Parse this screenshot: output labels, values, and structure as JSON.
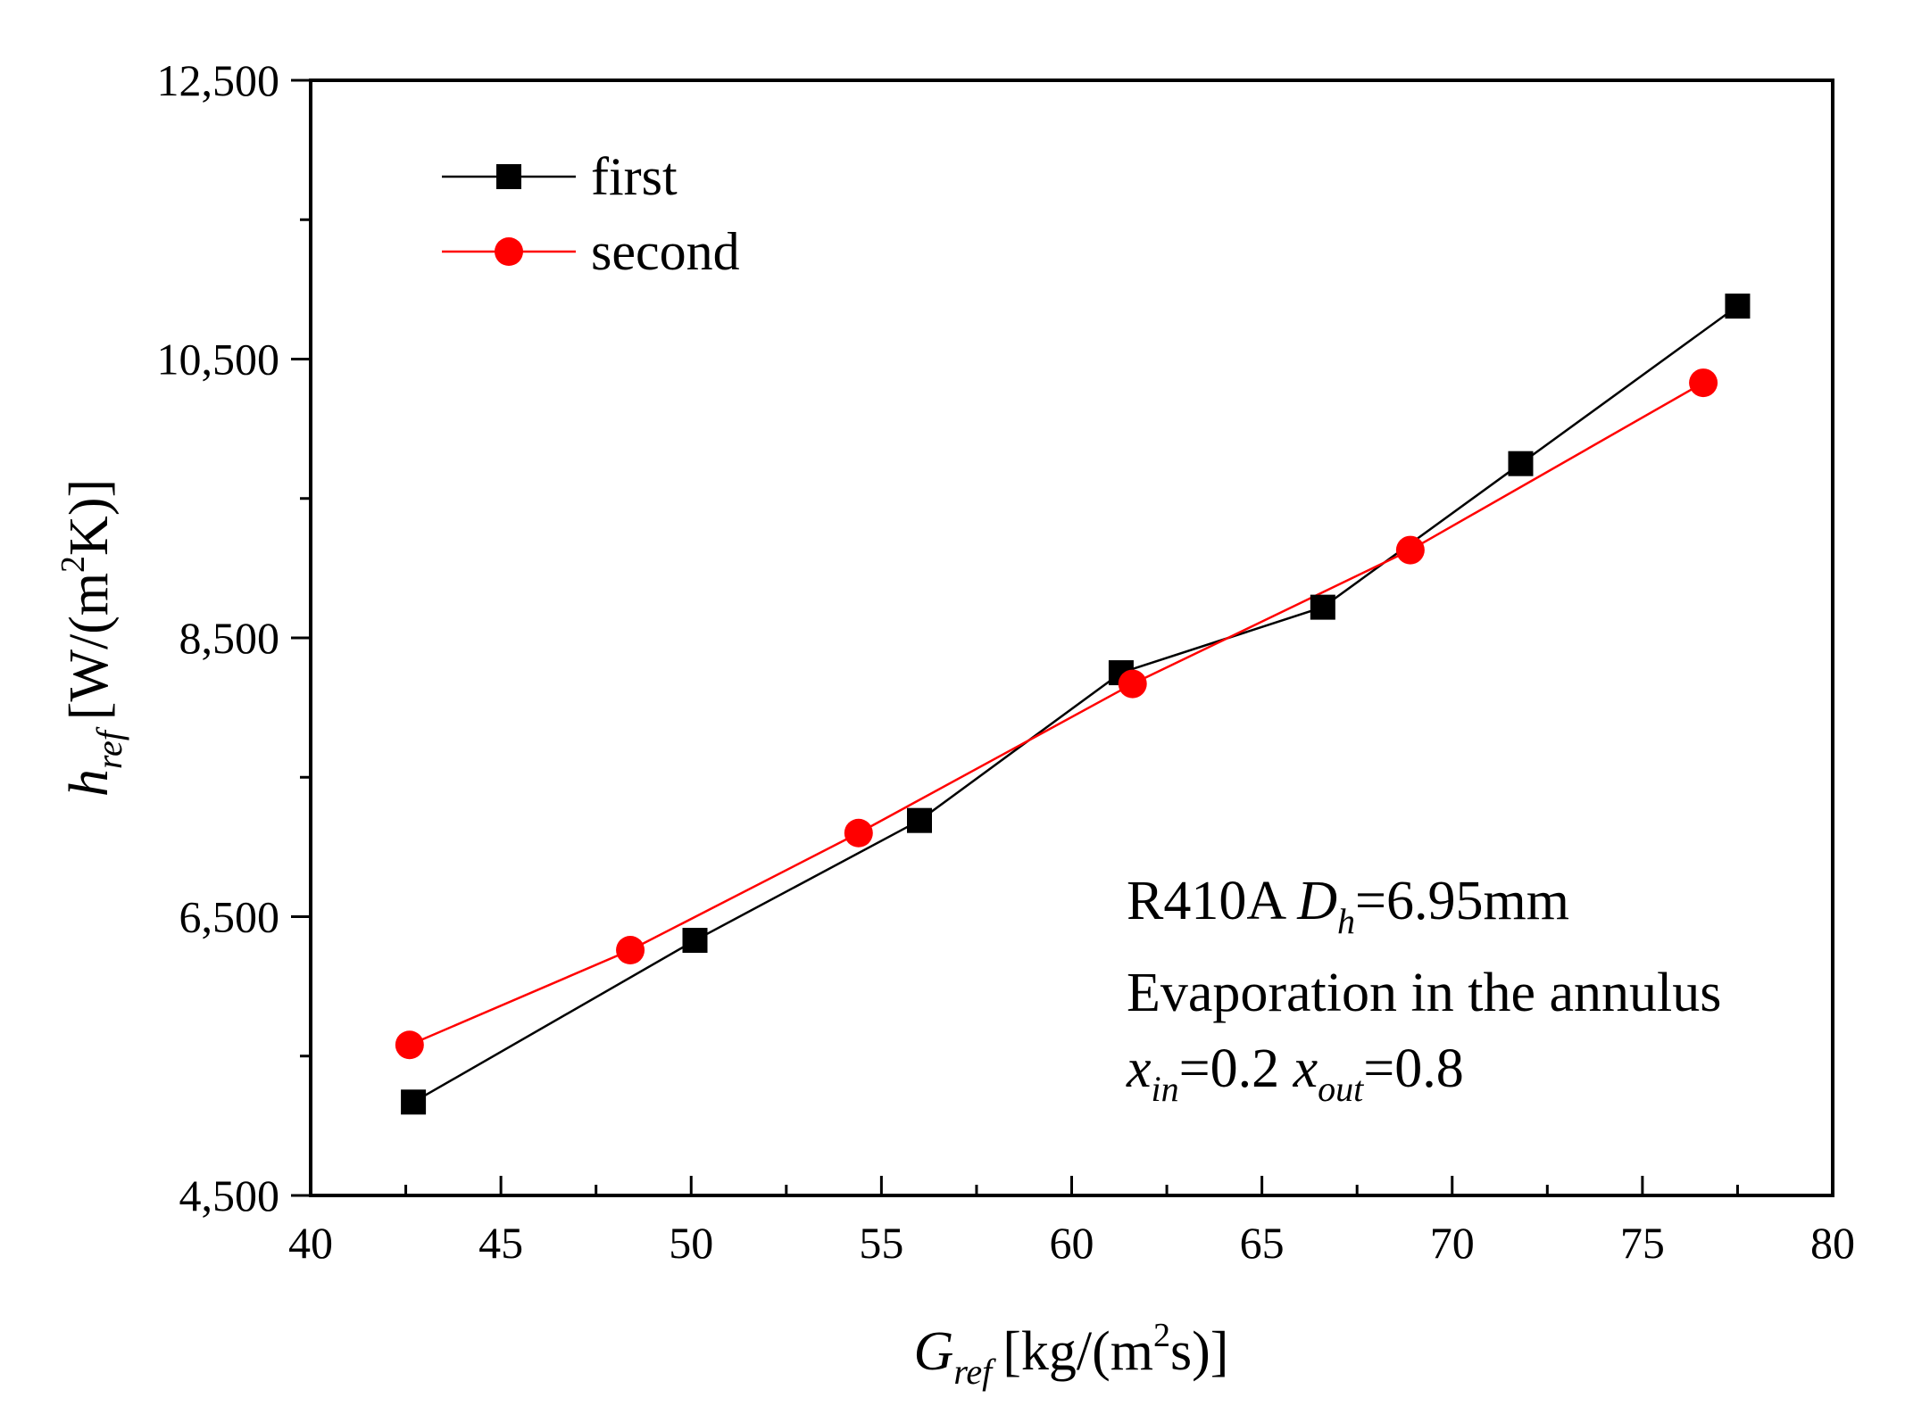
{
  "chart_data": {
    "type": "line",
    "title": "",
    "xlabel": "G",
    "xlabel_sub": "ref",
    "xlabel_unit": "[kg/(m",
    "xlabel_sup": "2",
    "xlabel_unit_end": "s)]",
    "ylabel": "h",
    "ylabel_sub": "ref",
    "ylabel_unit": "[W/(m",
    "ylabel_sup": "2",
    "ylabel_unit_end": "K)]",
    "xlim": [
      40,
      80
    ],
    "ylim": [
      4500,
      12500
    ],
    "x_major_ticks": [
      40,
      45,
      50,
      55,
      60,
      65,
      70,
      75,
      80
    ],
    "x_minor_ticks": [
      42.5,
      47.5,
      52.5,
      57.5,
      62.5,
      67.5,
      72.5,
      77.5
    ],
    "x_tick_labels": [
      "40",
      "45",
      "50",
      "55",
      "60",
      "65",
      "70",
      "75",
      "80"
    ],
    "y_major_ticks": [
      4500,
      6500,
      8500,
      10500,
      12500
    ],
    "y_minor_ticks": [
      5500,
      7500,
      9500,
      11500
    ],
    "y_tick_labels": [
      "4,500",
      "6,500",
      "8,500",
      "10,500",
      "12,500"
    ],
    "legend_position": "top-left",
    "grid": false,
    "series": [
      {
        "name": "first",
        "color": "#000000",
        "marker": "square",
        "x": [
          42.7,
          50.1,
          56.0,
          61.3,
          66.6,
          71.8,
          77.5
        ],
        "y": [
          5170,
          6330,
          7190,
          8250,
          8720,
          9750,
          10880
        ]
      },
      {
        "name": "second",
        "color": "#ff0000",
        "marker": "circle",
        "x": [
          42.6,
          48.4,
          54.4,
          61.6,
          68.9,
          76.6
        ],
        "y": [
          5580,
          6260,
          7100,
          8170,
          9130,
          10330
        ]
      }
    ],
    "annotation": {
      "line1_prefix": "R410A ",
      "line1_var": "D",
      "line1_sub": "h",
      "line1_suffix": "=6.95mm",
      "line2": "Evaporation in the annulus",
      "line3_var1": "x",
      "line3_sub1": "in",
      "line3_mid": "=0.2 ",
      "line3_var2": "x",
      "line3_sub2": "out",
      "line3_end": "=0.8"
    }
  }
}
